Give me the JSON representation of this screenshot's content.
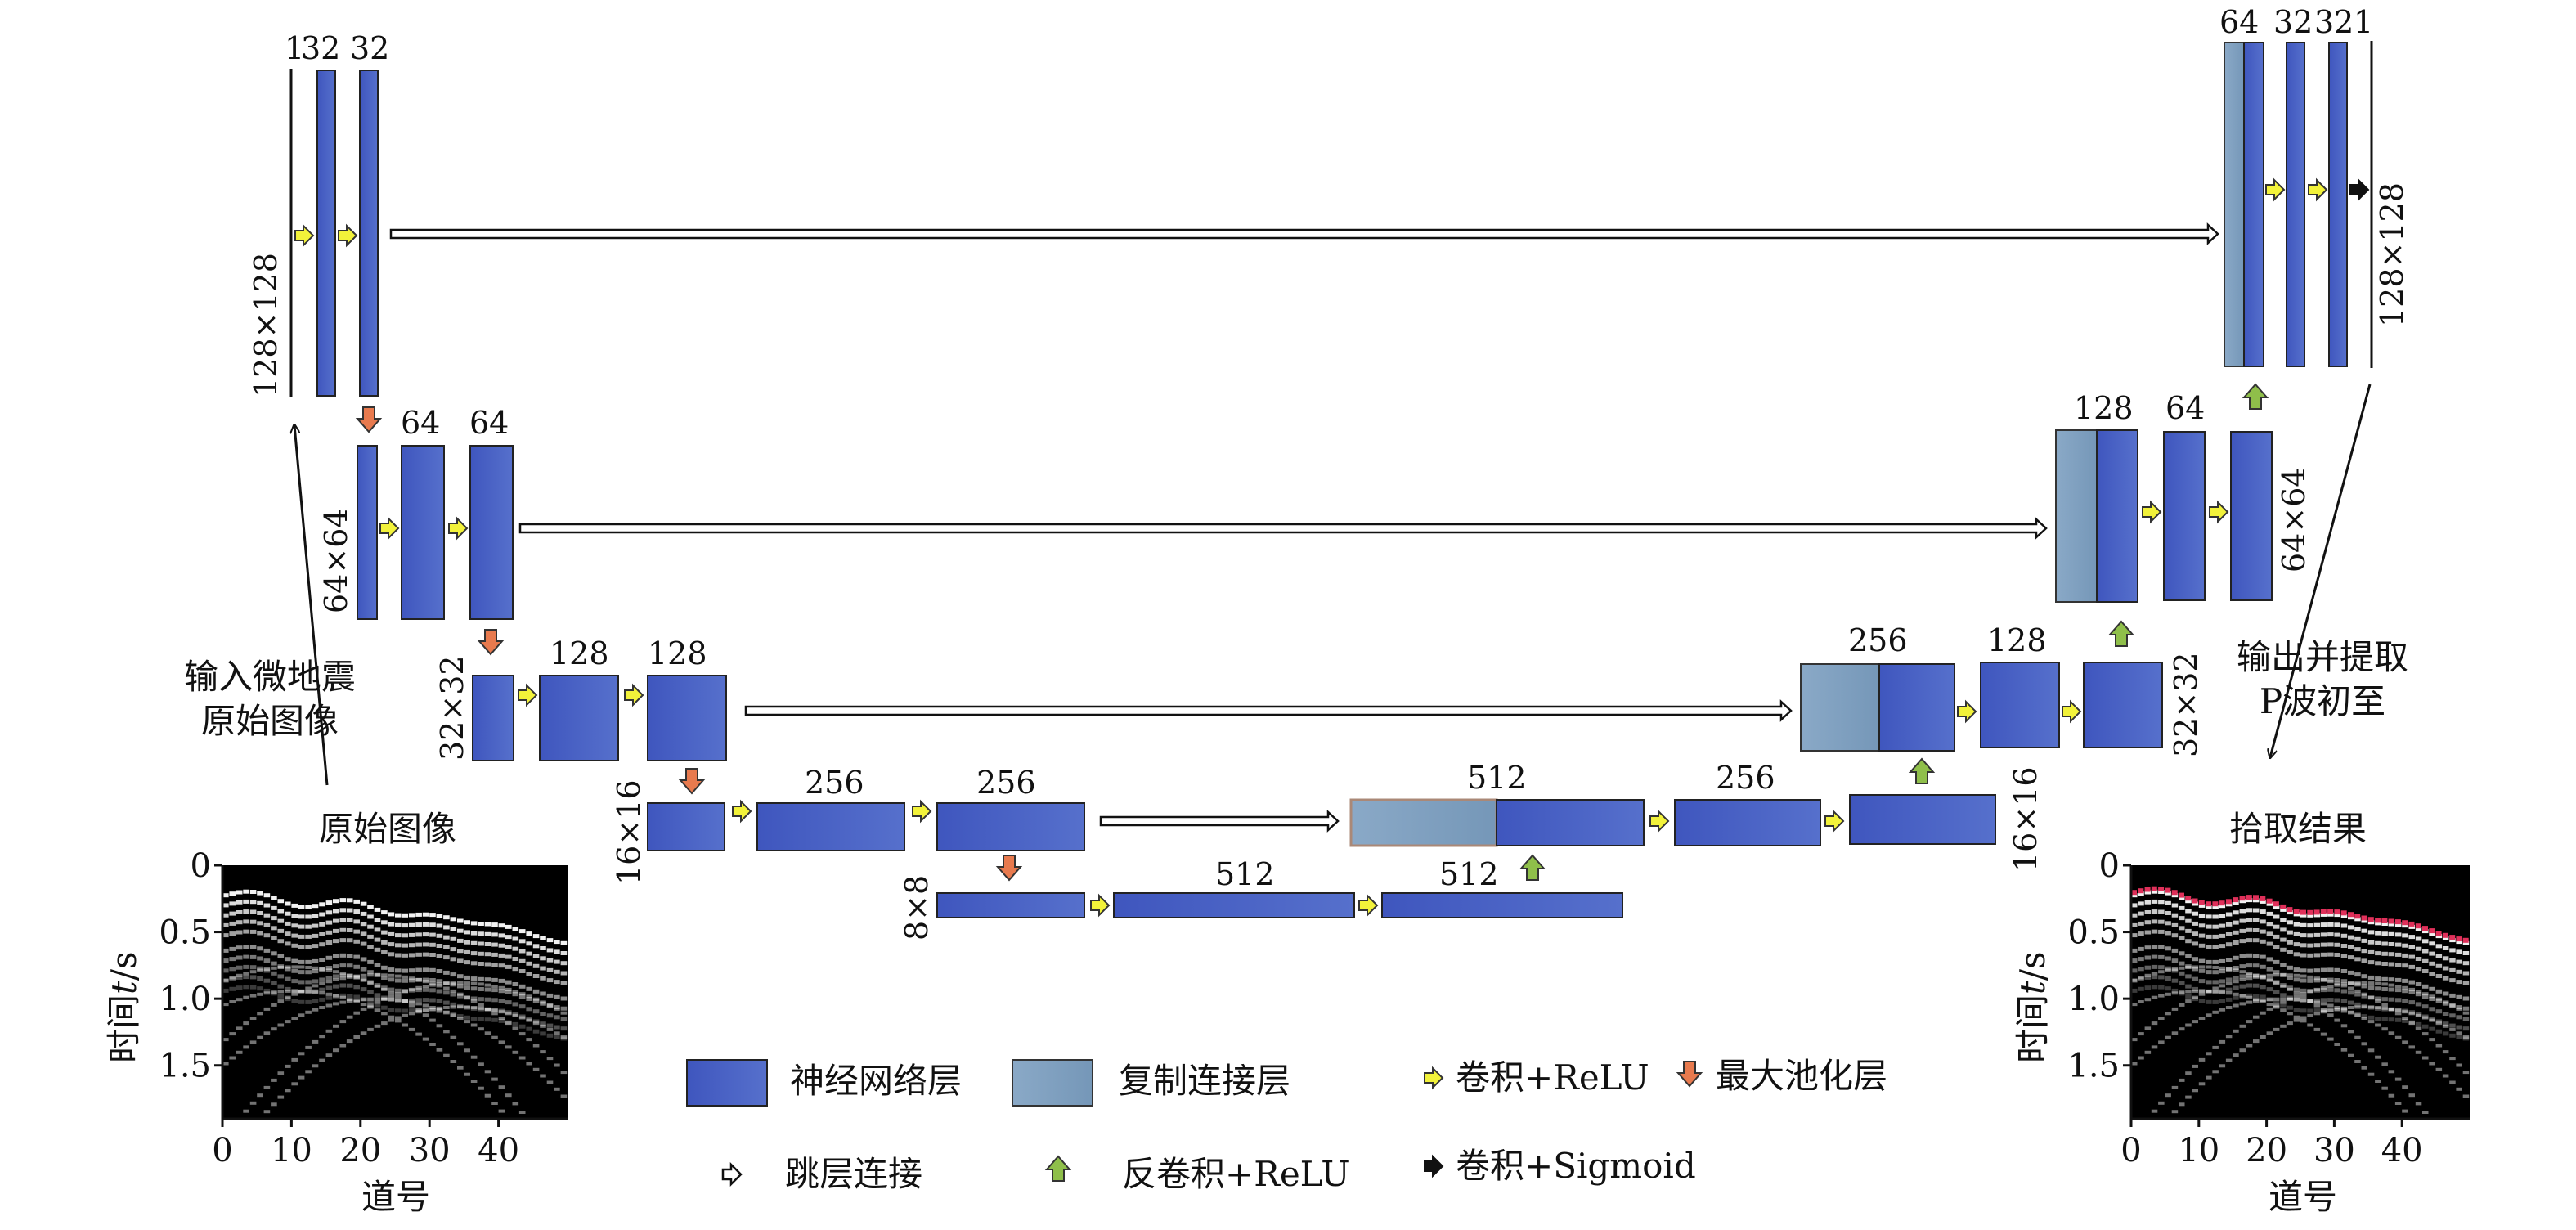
{
  "encoder": {
    "level1": {
      "channels": [
        "1",
        "32",
        "32"
      ],
      "size": "128×128"
    },
    "level2": {
      "channels": [
        "64",
        "64"
      ],
      "size": "64×64"
    },
    "level3": {
      "channels": [
        "128",
        "128"
      ],
      "size": "32×32"
    },
    "level4": {
      "channels": [
        "256",
        "256"
      ],
      "size": "16×16"
    },
    "bottom": {
      "channels": [
        "512",
        "512"
      ],
      "size": "8×8"
    }
  },
  "decoder": {
    "level4": {
      "channels": [
        "512",
        "256"
      ],
      "size": "16×16"
    },
    "level3": {
      "channels": [
        "256",
        "128"
      ],
      "size": "32×32"
    },
    "level2": {
      "channels": [
        "128",
        "64"
      ],
      "size": "64×64"
    },
    "level1": {
      "channels": [
        "64",
        "32",
        "32",
        "1"
      ],
      "size": "128×128"
    }
  },
  "annotations": {
    "input_line1": "输入微地震",
    "input_line2": "原始图像",
    "output_line1": "输出并提取",
    "output_line2": "P波初至"
  },
  "panels": {
    "input_title": "原始图像",
    "output_title": "拾取结果",
    "xlabel": "道号",
    "ylabel_prefix": "时间",
    "ylabel_var": "t",
    "ylabel_unit": "/s",
    "x_ticks": [
      "0",
      "10",
      "20",
      "30",
      "40"
    ],
    "y_ticks": [
      "0",
      "0.5",
      "1.0",
      "1.5"
    ]
  },
  "legend": {
    "nn_layer": "神经网络层",
    "copy_layer": "复制连接层",
    "conv_relu": "卷积+ReLU",
    "maxpool": "最大池化层",
    "skip": "跳层连接",
    "deconv_relu": "反卷积+ReLU",
    "conv_sigmoid": "卷积+Sigmoid"
  },
  "colors": {
    "nn_layer": "#4a62c4",
    "copy_layer": "#7ea1be",
    "conv_arrow": "#f2f23a",
    "pool_arrow": "#e87a4e",
    "deconv_arrow": "#8fbf4a",
    "pick_marker": "#e0305a"
  }
}
